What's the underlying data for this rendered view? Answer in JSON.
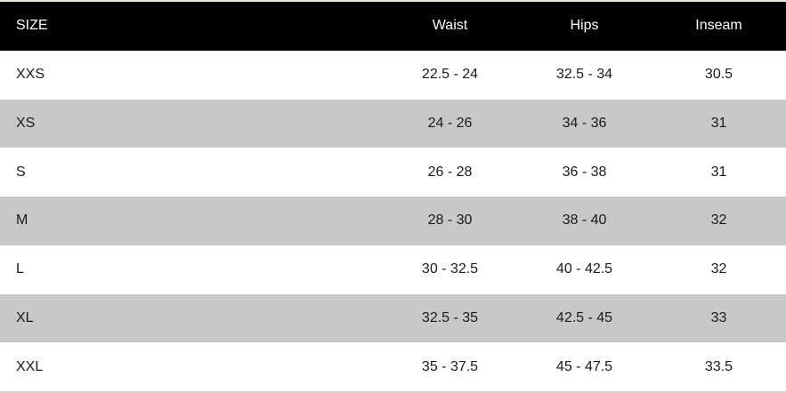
{
  "table": {
    "columns": [
      "SIZE",
      "Waist",
      "Hips",
      "Inseam"
    ],
    "rows": [
      {
        "size": "XXS",
        "waist": "22.5 - 24",
        "hips": "32.5 - 34",
        "inseam": "30.5"
      },
      {
        "size": "XS",
        "waist": "24 - 26",
        "hips": "34 - 36",
        "inseam": "31"
      },
      {
        "size": "S",
        "waist": "26 - 28",
        "hips": "36 - 38",
        "inseam": "31"
      },
      {
        "size": "M",
        "waist": "28 - 30",
        "hips": "38 - 40",
        "inseam": "32"
      },
      {
        "size": "L",
        "waist": "30 - 32.5",
        "hips": "40 - 42.5",
        "inseam": "32"
      },
      {
        "size": "XL",
        "waist": "32.5 - 35",
        "hips": "42.5 - 45",
        "inseam": "33"
      },
      {
        "size": "XXL",
        "waist": "35 - 37.5",
        "hips": "45 - 47.5",
        "inseam": "33.5"
      }
    ],
    "colors": {
      "header_bg": "#000000",
      "header_text": "#ffffff",
      "row_bg": "#ffffff",
      "row_alt_bg": "#c8c8c8",
      "body_text": "#1a1a1a",
      "top_border": "#e9e6e0",
      "bottom_border": "#d7d3ca"
    }
  }
}
